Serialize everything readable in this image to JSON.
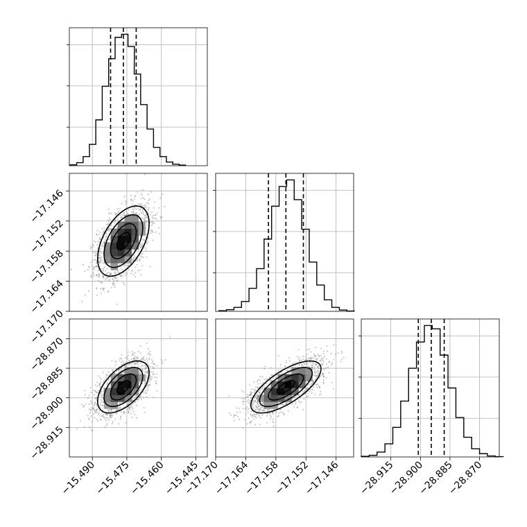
{
  "chart_data": {
    "type": "corner",
    "title": "",
    "parameters": [
      {
        "ticks": [
          -15.49,
          -15.475,
          -15.46,
          -15.445
        ],
        "tick_labels": [
          "−15.490",
          "−15.475",
          "−15.460",
          "−15.445"
        ],
        "range": [
          -15.5,
          -15.44
        ],
        "mean": -15.4765,
        "sd": 0.0056
      },
      {
        "ticks": [
          -17.17,
          -17.164,
          -17.158,
          -17.152,
          -17.146
        ],
        "tick_labels": [
          "−17.170",
          "−17.164",
          "−17.158",
          "−17.152",
          "−17.146"
        ],
        "range": [
          -17.17,
          -17.1425
        ],
        "mean": -17.156,
        "sd": 0.0035
      },
      {
        "ticks": [
          -28.915,
          -28.9,
          -28.885,
          -28.87
        ],
        "tick_labels": [
          "−28.915",
          "−28.900",
          "−28.885",
          "−28.870"
        ],
        "range": [
          -28.93,
          -28.86
        ],
        "mean": -28.8945,
        "sd": 0.0066
      }
    ],
    "quantiles": [
      0.16,
      0.5,
      0.84
    ],
    "marginal_values": [
      {
        "x": [
          -15.4982,
          -15.4954,
          -15.4926,
          -15.4899,
          -15.4871,
          -15.4843,
          -15.4815,
          -15.4787,
          -15.4759,
          -15.4731,
          -15.4704,
          -15.4676,
          -15.4648,
          -15.462,
          -15.4592,
          -15.4564,
          -15.4537,
          -15.4509
        ],
        "counts": [
          3,
          10,
          30,
          70,
          150,
          260,
          350,
          420,
          430,
          390,
          300,
          200,
          120,
          60,
          30,
          12,
          5,
          2
        ]
      },
      {
        "x": [
          -17.1686,
          -17.1671,
          -17.1656,
          -17.1641,
          -17.1626,
          -17.1611,
          -17.1596,
          -17.1581,
          -17.1566,
          -17.1551,
          -17.1536,
          -17.1521,
          -17.1506,
          -17.1491,
          -17.1476,
          -17.1461,
          -17.1446,
          -17.1431
        ],
        "counts": [
          2,
          5,
          12,
          30,
          70,
          130,
          220,
          320,
          380,
          400,
          340,
          250,
          150,
          80,
          35,
          12,
          4,
          1
        ]
      },
      {
        "x": [
          -28.928,
          -28.924,
          -28.92,
          -28.916,
          -28.912,
          -28.908,
          -28.904,
          -28.9,
          -28.896,
          -28.892,
          -28.888,
          -28.884,
          -28.88,
          -28.876,
          -28.872,
          -28.868,
          -28.864,
          -28.86
        ],
        "counts": [
          2,
          5,
          15,
          40,
          90,
          170,
          270,
          350,
          400,
          390,
          310,
          210,
          120,
          60,
          25,
          10,
          3,
          1
        ]
      }
    ],
    "correlations": {
      "0-1": 0.5,
      "0-2": 0.55,
      "1-2": 0.7
    },
    "grid": true
  }
}
